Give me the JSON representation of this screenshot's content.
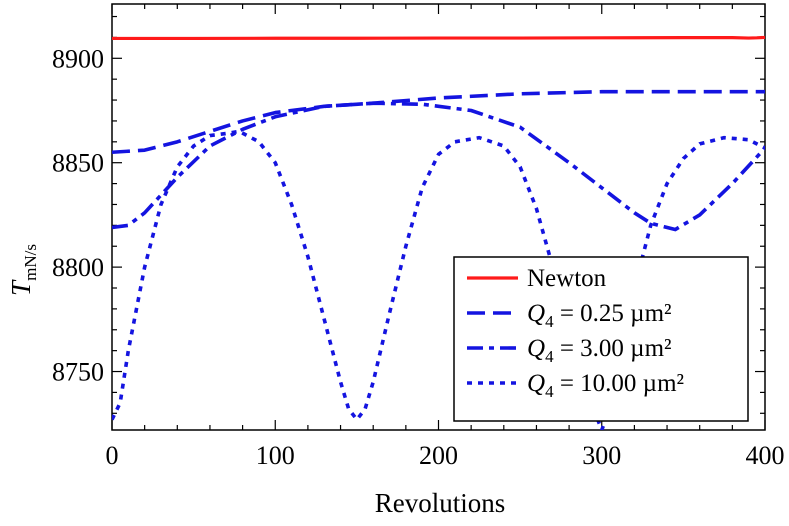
{
  "chart_data": {
    "type": "line",
    "title": "",
    "xlabel": "Revolutions",
    "ylabel": {
      "main": "T",
      "sub": "mN/s"
    },
    "xlim": [
      0,
      400
    ],
    "ylim": [
      8722,
      8926
    ],
    "x_ticks": [
      0,
      100,
      200,
      300,
      400
    ],
    "x_tick_labels": [
      "0",
      "100",
      "200",
      "300",
      "400"
    ],
    "y_ticks": [
      8750,
      8800,
      8850,
      8900
    ],
    "y_tick_labels": [
      "8750",
      "8800",
      "8850",
      "8900"
    ],
    "grid": false,
    "legend_position": "bottom-right",
    "series": [
      {
        "name": "Newton",
        "legend_parts": {
          "text": "Newton"
        },
        "color": "#ff1a1a",
        "style": "solid",
        "x": [
          0,
          50,
          100,
          150,
          200,
          250,
          300,
          350,
          380,
          390,
          395,
          400
        ],
        "y": [
          8909.5,
          8909.5,
          8909.6,
          8909.6,
          8909.7,
          8909.7,
          8909.8,
          8909.9,
          8909.9,
          8909.7,
          8909.8,
          8910
        ]
      },
      {
        "name": "Q4 = 0.25 µm²",
        "legend_parts": {
          "sym": "Q",
          "sub": "4",
          "rest": " = 0.25 µm²"
        },
        "color": "#1414e0",
        "style": "dashed",
        "x": [
          0,
          20,
          40,
          60,
          80,
          100,
          130,
          160,
          200,
          250,
          300,
          350,
          400
        ],
        "y": [
          8855,
          8856,
          8860,
          8865,
          8870,
          8874,
          8877,
          8878.5,
          8881,
          8883,
          8884,
          8884,
          8884
        ]
      },
      {
        "name": "Q4 = 3.00 µm²",
        "legend_parts": {
          "sym": "Q",
          "sub": "4",
          "rest": " = 3.00 µm²"
        },
        "color": "#1414e0",
        "style": "dashdot",
        "x": [
          0,
          10,
          20,
          40,
          60,
          80,
          100,
          130,
          160,
          190,
          220,
          250,
          280,
          300,
          320,
          330,
          345,
          360,
          380,
          400
        ],
        "y": [
          8819,
          8820,
          8826,
          8843,
          8858,
          8866,
          8872,
          8877,
          8878.5,
          8878,
          8875,
          8867,
          8850,
          8838,
          8826,
          8821,
          8818,
          8825,
          8840,
          8857
        ]
      },
      {
        "name": "Q4 = 10.00 µm²",
        "legend_parts": {
          "sym": "Q",
          "sub": "4",
          "rest": " = 10.00 µm²"
        },
        "color": "#1414e0",
        "style": "dotted",
        "x": [
          0,
          5,
          10,
          20,
          30,
          40,
          50,
          60,
          70,
          78,
          90,
          100,
          110,
          120,
          130,
          140,
          145,
          150,
          155,
          160,
          170,
          180,
          190,
          200,
          210,
          225,
          240,
          250,
          260,
          270,
          280,
          290,
          297,
          300,
          303,
          310,
          320,
          330,
          340,
          350,
          360,
          375,
          390,
          400
        ],
        "y": [
          8727,
          8735,
          8760,
          8800,
          8830,
          8848,
          8858,
          8863,
          8864,
          8865,
          8860,
          8850,
          8830,
          8805,
          8775,
          8745,
          8732,
          8727,
          8732,
          8745,
          8778,
          8810,
          8838,
          8854,
          8860,
          8862,
          8858,
          8848,
          8828,
          8800,
          8770,
          8745,
          8728,
          8722,
          8728,
          8748,
          8790,
          8820,
          8840,
          8852,
          8859,
          8862,
          8861,
          8857
        ]
      }
    ]
  }
}
